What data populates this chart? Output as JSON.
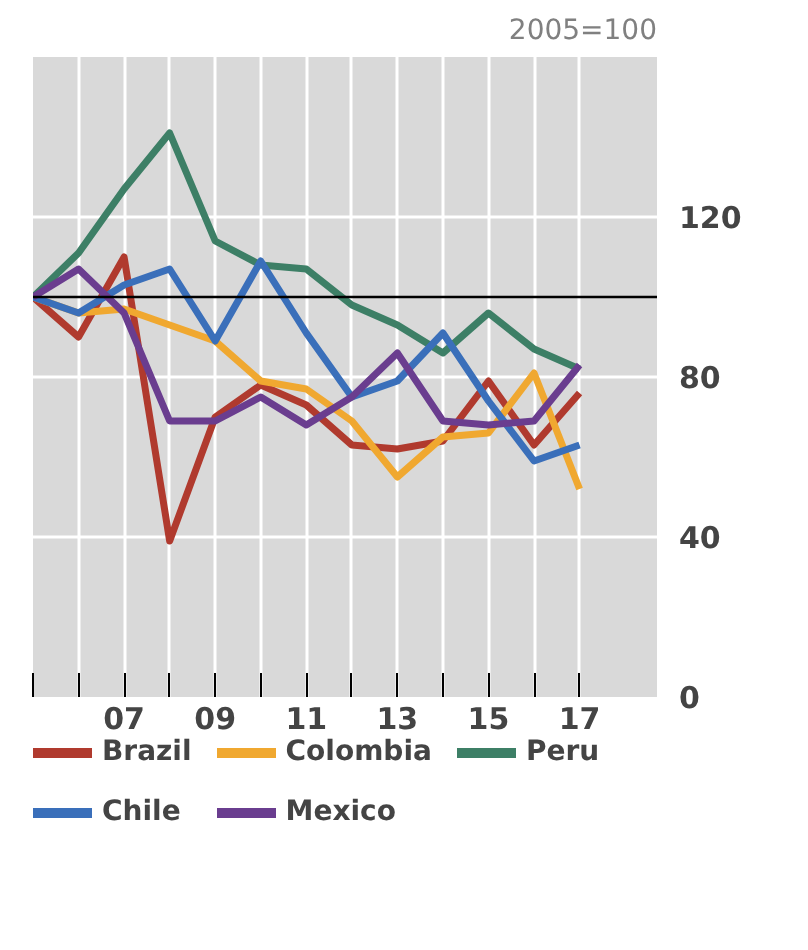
{
  "chart_data": {
    "type": "line",
    "annotations": [
      "2005=100"
    ],
    "x": [
      2005,
      2006,
      2007,
      2008,
      2009,
      2010,
      2011,
      2012,
      2013,
      2014,
      2015,
      2016,
      2017
    ],
    "series": [
      {
        "name": "Brazil",
        "color": "#b03a2e",
        "values": [
          100,
          90,
          110,
          39,
          70,
          78,
          73,
          63,
          62,
          64,
          79,
          63,
          76
        ]
      },
      {
        "name": "Colombia",
        "color": "#f0a830",
        "values": [
          100,
          96,
          97,
          93,
          89,
          79,
          77,
          69,
          55,
          65,
          66,
          81,
          52
        ]
      },
      {
        "name": "Peru",
        "color": "#3d7f66",
        "values": [
          100,
          111,
          127,
          141,
          114,
          108,
          107,
          98,
          93,
          86,
          96,
          87,
          82
        ]
      },
      {
        "name": "Chile",
        "color": "#3a6fba",
        "values": [
          100,
          96,
          103,
          107,
          89,
          109,
          91,
          75,
          79,
          91,
          74,
          59,
          63
        ]
      },
      {
        "name": "Mexico",
        "color": "#6a3d8f",
        "values": [
          100,
          107,
          96,
          69,
          69,
          75,
          68,
          75,
          86,
          69,
          68,
          69,
          83
        ]
      }
    ],
    "xlim": [
      2005,
      2018.7
    ],
    "ylim": [
      0,
      160
    ],
    "xticks": [
      {
        "value": 2005,
        "label": null
      },
      {
        "value": 2006,
        "label": null
      },
      {
        "value": 2007,
        "label": "07"
      },
      {
        "value": 2008,
        "label": null
      },
      {
        "value": 2009,
        "label": "09"
      },
      {
        "value": 2010,
        "label": null
      },
      {
        "value": 2011,
        "label": "11"
      },
      {
        "value": 2012,
        "label": null
      },
      {
        "value": 2013,
        "label": "13"
      },
      {
        "value": 2014,
        "label": null
      },
      {
        "value": 2015,
        "label": "15"
      },
      {
        "value": 2016,
        "label": null
      },
      {
        "value": 2017,
        "label": "17"
      }
    ],
    "yticks": [
      0,
      40,
      80,
      120
    ],
    "ref_lines": [
      {
        "axis": "y",
        "value": 100,
        "label": null,
        "color": "#000000"
      }
    ],
    "grid": true,
    "legend": "bottom",
    "marker": "none",
    "line_style": "solid"
  }
}
